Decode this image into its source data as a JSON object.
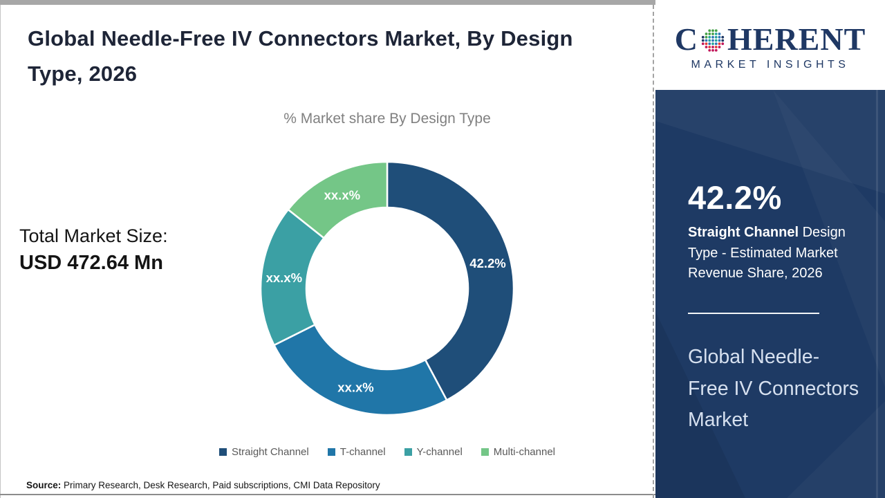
{
  "header": {
    "title": "Global Needle-Free IV Connectors Market, By Design Type, 2026"
  },
  "chart": {
    "subtitle": "% Market share By Design Type",
    "total_label": "Total Market Size:",
    "total_value": "USD 472.64 Mn"
  },
  "chart_data": {
    "type": "pie",
    "subtype": "donut",
    "title": "% Market share By Design Type",
    "categories": [
      "Straight Channel",
      "T-channel",
      "Y-channel",
      "Multi-channel"
    ],
    "slice_labels": [
      "42.2%",
      "xx.x%",
      "xx.x%",
      "xx.x%"
    ],
    "values_estimated_pct": [
      42.2,
      25.4,
      18.1,
      14.3
    ],
    "colors": [
      "#1F4E79",
      "#2076A8",
      "#3BA0A4",
      "#74C687"
    ],
    "start_angle_deg": 0,
    "direction": "clockwise",
    "legend_position": "bottom"
  },
  "source": {
    "label": "Source:",
    "text": " Primary Research, Desk Research, Paid subscriptions, CMI Data Repository"
  },
  "sidebar": {
    "logo": {
      "word_pre": "C",
      "word_post": "HERENT",
      "subtitle": "MARKET INSIGHTS"
    },
    "stat_value": "42.2%",
    "stat_bold": "Straight Channel",
    "stat_rest": " Design Type - Estimated Market Revenue Share, 2026",
    "market_name": "Global Needle-Free IV Connectors Market",
    "colors": {
      "panel_bg": "#1e3a64",
      "logo_navy": "#1f3864",
      "market_name_text": "#d6e0ef"
    }
  }
}
